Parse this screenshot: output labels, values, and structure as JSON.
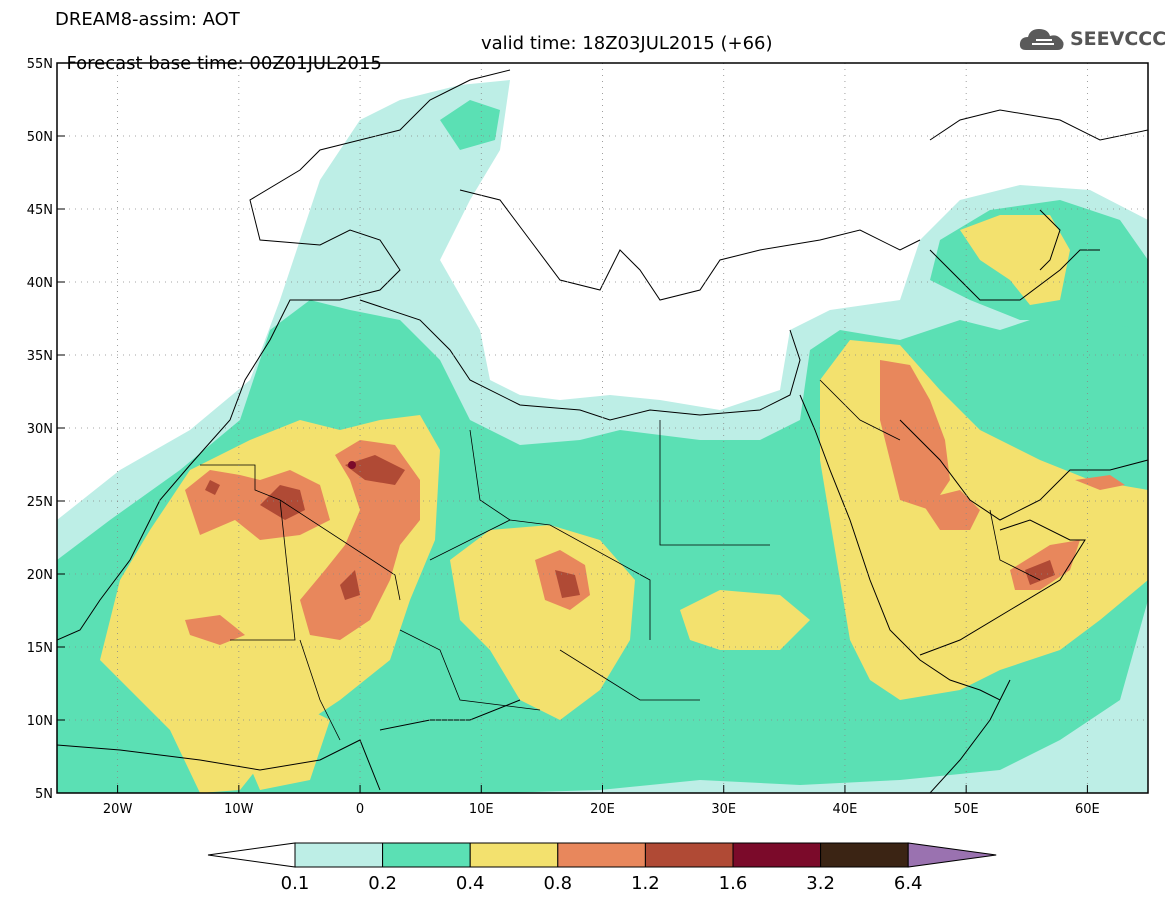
{
  "header": {
    "title": "DREAM8-assim: AOT",
    "base_time": "Forecast base time: 00Z01JUL2015",
    "valid_time": "valid time: 18Z03JUL2015 (+66)"
  },
  "logo": {
    "text": "SEEVCCC",
    "icon": "cloud-icon"
  },
  "axes": {
    "lat_labels": [
      "55N",
      "50N",
      "45N",
      "40N",
      "35N",
      "30N",
      "25N",
      "20N",
      "15N",
      "10N",
      "5N"
    ],
    "lon_labels": [
      "20W",
      "10W",
      "0",
      "10E",
      "20E",
      "30E",
      "40E",
      "50E",
      "60E"
    ],
    "lat_range": [
      5,
      55
    ],
    "lon_range": [
      -25,
      65
    ]
  },
  "colorbar": {
    "labels": [
      "0.1",
      "0.2",
      "0.4",
      "0.8",
      "1.2",
      "1.6",
      "3.2",
      "6.4"
    ],
    "colors": [
      "#ffffff",
      "#bdeee6",
      "#5be0b4",
      "#f3e16e",
      "#e8875c",
      "#b04a35",
      "#7b0a2a",
      "#3b2414",
      "#9a72b0"
    ]
  },
  "palette": {
    "c1": "#bdeee6",
    "c2": "#5be0b4",
    "c3": "#f3e16e",
    "c4": "#e8875c",
    "c5": "#b04a35",
    "c6": "#7b0a2a"
  }
}
